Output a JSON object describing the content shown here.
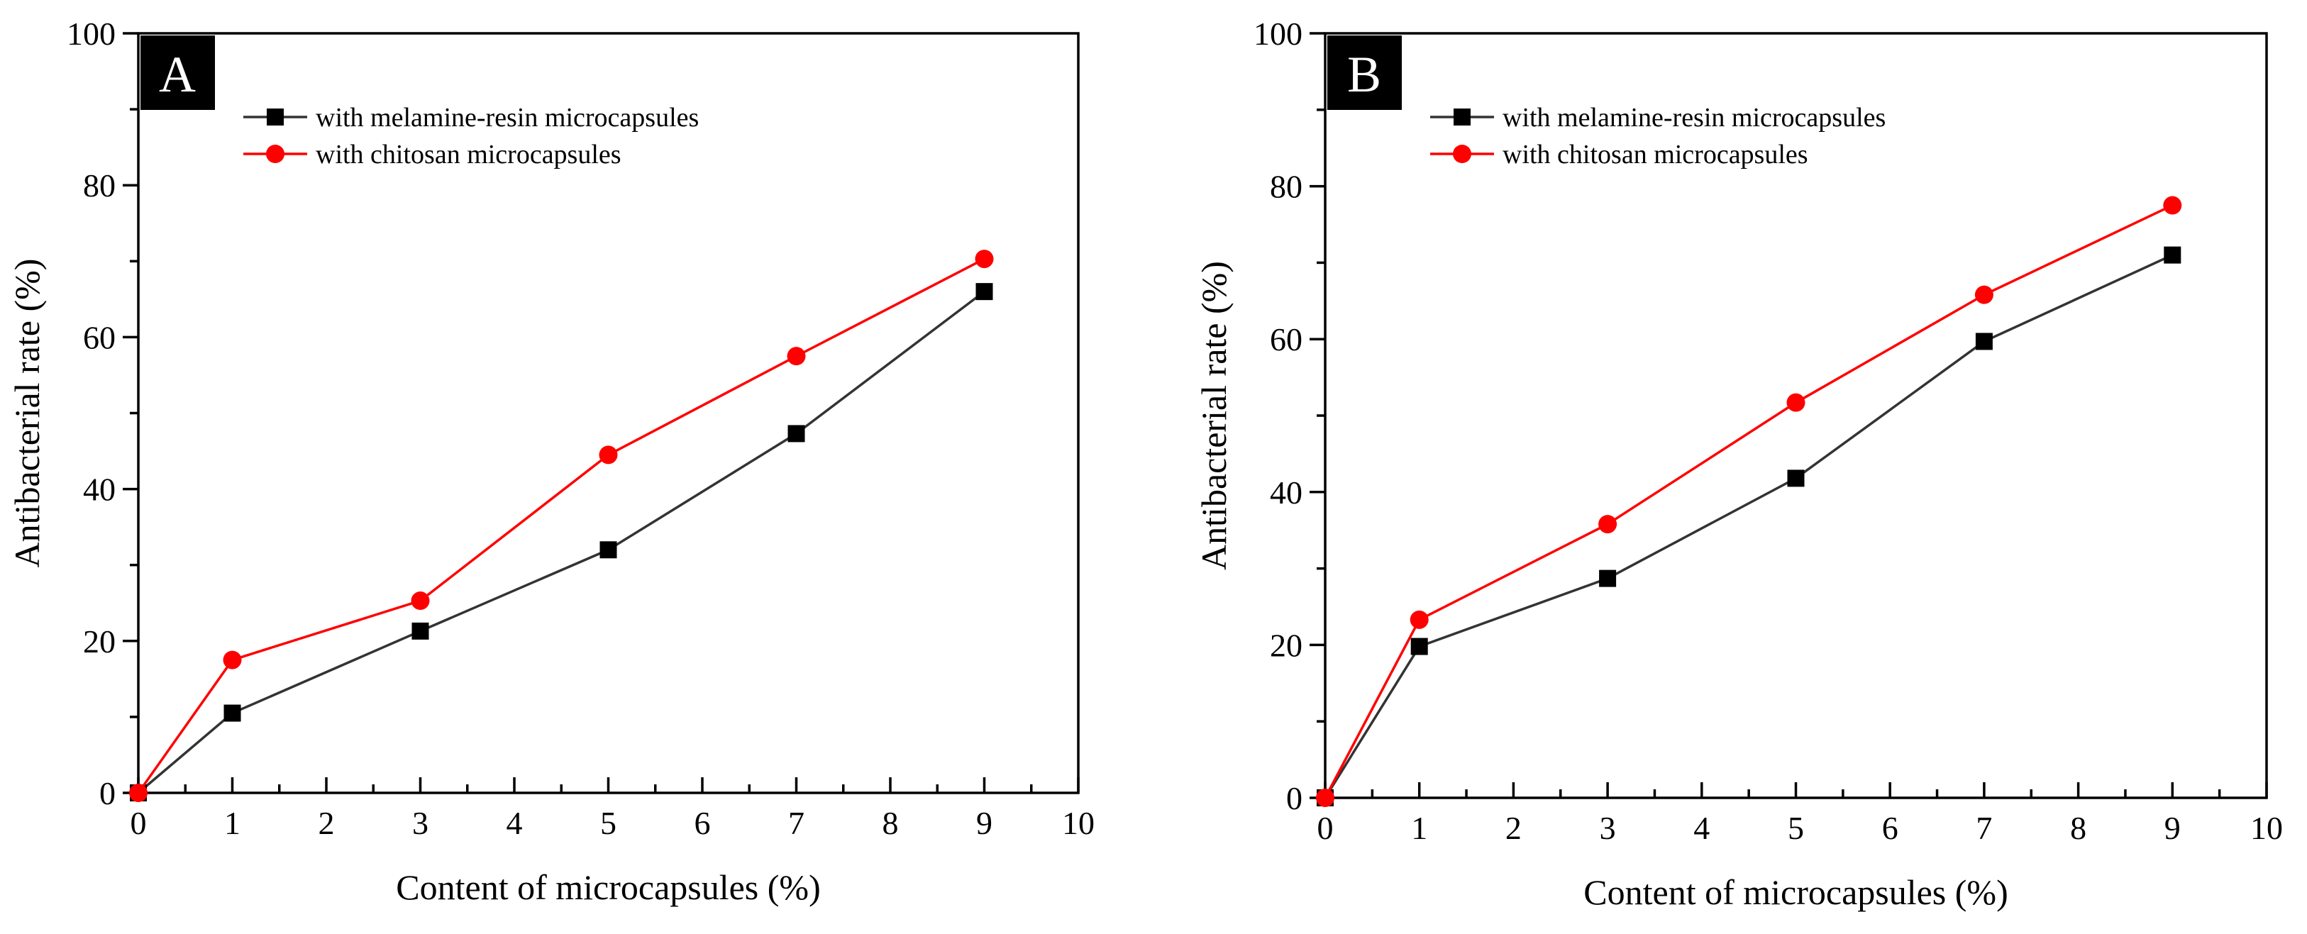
{
  "chart_data": [
    {
      "type": "line",
      "panel_label": "A",
      "xlabel": "Content of microcapsules (%)",
      "ylabel": "Antibacterial rate (%)",
      "xlim": [
        0,
        10
      ],
      "ylim": [
        0,
        100
      ],
      "x_ticks": [
        0,
        1,
        2,
        3,
        4,
        5,
        6,
        7,
        8,
        9,
        10
      ],
      "y_ticks": [
        0,
        20,
        40,
        60,
        80,
        100
      ],
      "legend_position": "top-left",
      "series": [
        {
          "name": "with melamine-resin microcapsules",
          "color": "#333333",
          "marker_color": "#000000",
          "marker": "square",
          "x": [
            0,
            1,
            3,
            5,
            7,
            9
          ],
          "values": [
            0,
            10.5,
            21.3,
            32.0,
            47.3,
            66.0
          ]
        },
        {
          "name": "with chitosan microcapsules",
          "color": "#ff0000",
          "marker_color": "#ff0000",
          "marker": "circle",
          "x": [
            0,
            1,
            3,
            5,
            7,
            9
          ],
          "values": [
            0,
            17.5,
            25.3,
            44.5,
            57.5,
            70.3
          ]
        }
      ]
    },
    {
      "type": "line",
      "panel_label": "B",
      "xlabel": "Content of microcapsules (%)",
      "ylabel": "Antibacterial rate (%)",
      "xlim": [
        0,
        10
      ],
      "ylim": [
        0,
        100
      ],
      "x_ticks": [
        0,
        1,
        2,
        3,
        4,
        5,
        6,
        7,
        8,
        9,
        10
      ],
      "y_ticks": [
        0,
        20,
        40,
        60,
        80,
        100
      ],
      "legend_position": "top-left",
      "series": [
        {
          "name": "with melamine-resin microcapsules",
          "color": "#333333",
          "marker_color": "#000000",
          "marker": "square",
          "x": [
            0,
            1,
            3,
            5,
            7,
            9
          ],
          "values": [
            0,
            19.8,
            28.7,
            41.8,
            59.7,
            71.0
          ]
        },
        {
          "name": "with chitosan microcapsules",
          "color": "#ff0000",
          "marker_color": "#ff0000",
          "marker": "circle",
          "x": [
            0,
            1,
            3,
            5,
            7,
            9
          ],
          "values": [
            0,
            23.3,
            35.8,
            51.7,
            65.8,
            77.5
          ]
        }
      ]
    }
  ]
}
